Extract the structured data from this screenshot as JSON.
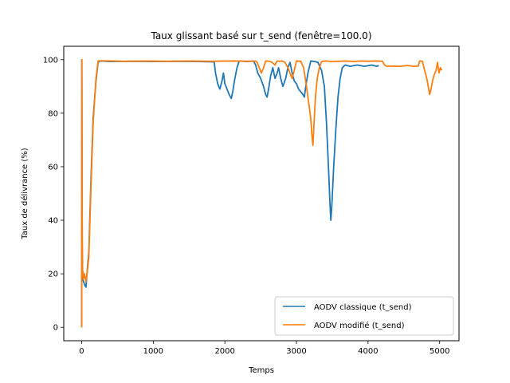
{
  "chart_data": {
    "type": "line",
    "title": "Taux glissant basé sur t_send (fenêtre=100.0)",
    "xlabel": "Temps",
    "ylabel": "Taux de délivrance (%)",
    "xlim": [
      -250,
      5270
    ],
    "ylim": [
      -5,
      105
    ],
    "xticks": [
      0,
      1000,
      2000,
      3000,
      4000,
      5000
    ],
    "yticks": [
      0,
      20,
      40,
      60,
      80,
      100
    ],
    "legend_position": "lower right",
    "grid": false,
    "series": [
      {
        "name": "AODV classique (t_send)",
        "color": "#1f77b4",
        "points": [
          [
            0,
            0
          ],
          [
            3,
            100
          ],
          [
            8,
            30
          ],
          [
            15,
            18
          ],
          [
            40,
            16
          ],
          [
            60,
            15
          ],
          [
            80,
            22
          ],
          [
            100,
            28
          ],
          [
            130,
            55
          ],
          [
            160,
            78
          ],
          [
            200,
            92
          ],
          [
            230,
            99
          ],
          [
            260,
            99.5
          ],
          [
            400,
            99.3
          ],
          [
            700,
            99.4
          ],
          [
            1000,
            99.3
          ],
          [
            1300,
            99.4
          ],
          [
            1600,
            99.3
          ],
          [
            1850,
            99.2
          ],
          [
            1870,
            95
          ],
          [
            1900,
            91
          ],
          [
            1930,
            89
          ],
          [
            1960,
            92
          ],
          [
            1980,
            95
          ],
          [
            2000,
            91
          ],
          [
            2030,
            89
          ],
          [
            2060,
            87
          ],
          [
            2090,
            85.5
          ],
          [
            2110,
            88
          ],
          [
            2140,
            93
          ],
          [
            2170,
            97
          ],
          [
            2200,
            99.5
          ],
          [
            2300,
            99.3
          ],
          [
            2400,
            99.5
          ],
          [
            2430,
            98
          ],
          [
            2460,
            95
          ],
          [
            2500,
            93
          ],
          [
            2540,
            90
          ],
          [
            2570,
            87
          ],
          [
            2590,
            86
          ],
          [
            2610,
            89
          ],
          [
            2640,
            94
          ],
          [
            2670,
            97
          ],
          [
            2700,
            93
          ],
          [
            2730,
            95
          ],
          [
            2750,
            97
          ],
          [
            2780,
            93
          ],
          [
            2810,
            90
          ],
          [
            2850,
            93
          ],
          [
            2880,
            97
          ],
          [
            2910,
            99
          ],
          [
            2940,
            95
          ],
          [
            2970,
            92
          ],
          [
            3000,
            91
          ],
          [
            3030,
            89
          ],
          [
            3060,
            88
          ],
          [
            3090,
            87
          ],
          [
            3110,
            86
          ],
          [
            3130,
            90
          ],
          [
            3160,
            95
          ],
          [
            3200,
            99.5
          ],
          [
            3250,
            99.3
          ],
          [
            3300,
            99
          ],
          [
            3350,
            96
          ],
          [
            3390,
            90
          ],
          [
            3420,
            76
          ],
          [
            3450,
            58
          ],
          [
            3470,
            45
          ],
          [
            3480,
            40
          ],
          [
            3495,
            46
          ],
          [
            3520,
            60
          ],
          [
            3550,
            74
          ],
          [
            3580,
            86
          ],
          [
            3610,
            93
          ],
          [
            3640,
            97
          ],
          [
            3680,
            98
          ],
          [
            3750,
            97.5
          ],
          [
            3850,
            98
          ],
          [
            3950,
            97.5
          ],
          [
            4050,
            98
          ],
          [
            4120,
            97.5
          ],
          [
            4150,
            97.8
          ]
        ]
      },
      {
        "name": "AODV modifié (t_send)",
        "color": "#ff7f0e",
        "points": [
          [
            0,
            0
          ],
          [
            2,
            100
          ],
          [
            6,
            45
          ],
          [
            12,
            22
          ],
          [
            25,
            18
          ],
          [
            40,
            20
          ],
          [
            60,
            17
          ],
          [
            80,
            21
          ],
          [
            100,
            26
          ],
          [
            130,
            52
          ],
          [
            160,
            76
          ],
          [
            200,
            93
          ],
          [
            230,
            99.5
          ],
          [
            300,
            99.6
          ],
          [
            600,
            99.4
          ],
          [
            900,
            99.5
          ],
          [
            1200,
            99.4
          ],
          [
            1500,
            99.5
          ],
          [
            1800,
            99.4
          ],
          [
            2100,
            99.5
          ],
          [
            2400,
            99.4
          ],
          [
            2430,
            99.5
          ],
          [
            2450,
            99
          ],
          [
            2480,
            97
          ],
          [
            2510,
            95
          ],
          [
            2540,
            97
          ],
          [
            2570,
            99.5
          ],
          [
            2620,
            99.4
          ],
          [
            2660,
            99
          ],
          [
            2700,
            98
          ],
          [
            2730,
            99.5
          ],
          [
            2760,
            99.4
          ],
          [
            2800,
            99.5
          ],
          [
            2840,
            99
          ],
          [
            2880,
            97
          ],
          [
            2910,
            95
          ],
          [
            2940,
            93
          ],
          [
            2970,
            96
          ],
          [
            3000,
            99.5
          ],
          [
            3060,
            99.4
          ],
          [
            3100,
            97
          ],
          [
            3140,
            90
          ],
          [
            3170,
            84
          ],
          [
            3200,
            78
          ],
          [
            3215,
            72
          ],
          [
            3230,
            68
          ],
          [
            3245,
            76
          ],
          [
            3265,
            86
          ],
          [
            3290,
            93
          ],
          [
            3320,
            97
          ],
          [
            3350,
            99.3
          ],
          [
            3400,
            99.5
          ],
          [
            3500,
            99.3
          ],
          [
            3600,
            99.4
          ],
          [
            3700,
            99.5
          ],
          [
            3800,
            99.3
          ],
          [
            3900,
            99.5
          ],
          [
            4000,
            99.4
          ],
          [
            4100,
            99.5
          ],
          [
            4200,
            99.4
          ],
          [
            4230,
            98
          ],
          [
            4260,
            97.5
          ],
          [
            4350,
            97.6
          ],
          [
            4450,
            97.5
          ],
          [
            4550,
            97.8
          ],
          [
            4650,
            97.5
          ],
          [
            4700,
            97.6
          ],
          [
            4720,
            99.5
          ],
          [
            4760,
            99.4
          ],
          [
            4780,
            97
          ],
          [
            4800,
            95
          ],
          [
            4820,
            93
          ],
          [
            4840,
            90
          ],
          [
            4860,
            87
          ],
          [
            4880,
            89
          ],
          [
            4900,
            92
          ],
          [
            4920,
            94
          ],
          [
            4950,
            96
          ],
          [
            4970,
            99
          ],
          [
            4990,
            95
          ],
          [
            5010,
            97
          ],
          [
            5030,
            96
          ]
        ]
      }
    ]
  }
}
